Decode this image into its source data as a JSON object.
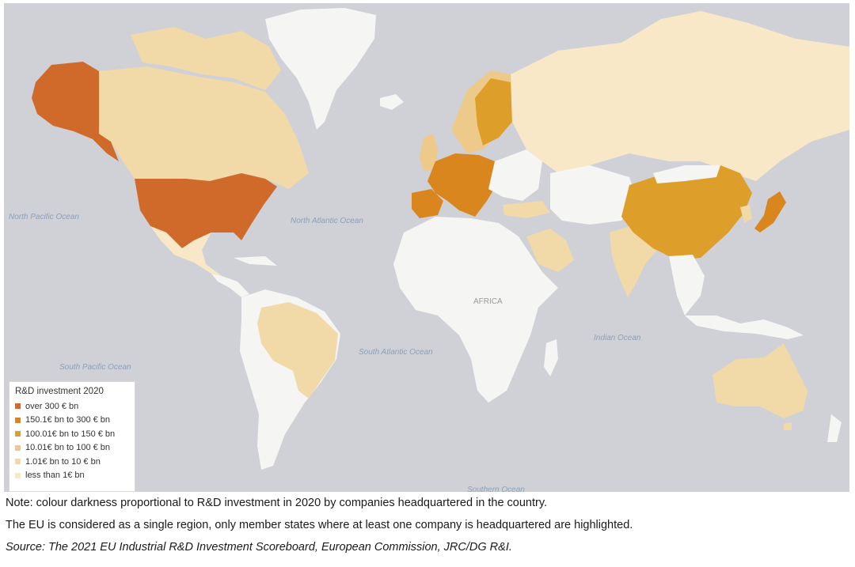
{
  "colors": {
    "ocean": "#cfd1d6",
    "no_data": "#f5f5f4",
    "over_300": "#d06a2a",
    "b150_300": "#d9861f",
    "b100_150": "#dd9e2a",
    "b10_100": "#edc98a",
    "b1_10": "#f1d9a8",
    "under_1": "#f8e8c8"
  },
  "ocean_labels": {
    "north_pacific": "North Pacific Ocean",
    "north_atlantic": "North Atlantic Ocean",
    "south_pacific": "South Pacific Ocean",
    "south_atlantic": "South Atlantic Ocean",
    "indian": "Indian Ocean",
    "southern": "Southern Ocean"
  },
  "region_labels": {
    "africa": "AFRICA"
  },
  "legend": {
    "title": "R&D investment 2020",
    "items": [
      {
        "label": "over 300 € bn",
        "color": "#d06a2a"
      },
      {
        "label": "150.1€ bn to 300 € bn",
        "color": "#d9861f"
      },
      {
        "label": "100.01€ bn to 150 € bn",
        "color": "#dd9e2a"
      },
      {
        "label": "10.01€ bn to 100 € bn",
        "color": "#edc98a"
      },
      {
        "label": "1.01€ bn to 10 € bn",
        "color": "#f1d9a8"
      },
      {
        "label": "less than 1€ bn",
        "color": "#f8e8c8"
      }
    ]
  },
  "notes": {
    "line1": "Note: colour darkness proportional to R&D investment in 2020 by companies headquartered in the country.",
    "line2": "The EU is considered as a single region, only member states where at least one company is headquartered are highlighted.",
    "source": "Source: The 2021 EU Industrial R&D Investment Scoreboard, European Commission, JRC/DG R&I."
  }
}
